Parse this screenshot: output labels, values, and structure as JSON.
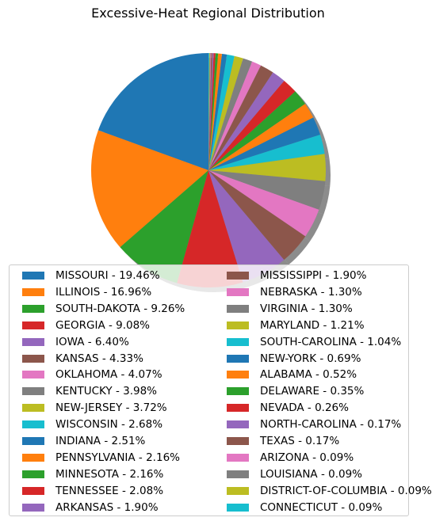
{
  "chart_data": {
    "type": "pie",
    "title": "Excessive-Heat Regional Distribution",
    "shadow": true,
    "start_angle_deg": 90,
    "direction": "counterclockwise",
    "legend": "bottom",
    "slices": [
      {
        "label": "MISSOURI - 19.46%",
        "value": 19.46,
        "color": "#1f77b4"
      },
      {
        "label": "ILLINOIS - 16.96%",
        "value": 16.96,
        "color": "#ff7f0e"
      },
      {
        "label": "SOUTH-DAKOTA - 9.26%",
        "value": 9.26,
        "color": "#2ca02c"
      },
      {
        "label": "GEORGIA - 9.08%",
        "value": 9.08,
        "color": "#d62728"
      },
      {
        "label": "IOWA - 6.40%",
        "value": 6.4,
        "color": "#9467bd"
      },
      {
        "label": "KANSAS - 4.33%",
        "value": 4.33,
        "color": "#8c564b"
      },
      {
        "label": "OKLAHOMA - 4.07%",
        "value": 4.07,
        "color": "#e377c2"
      },
      {
        "label": "KENTUCKY - 3.98%",
        "value": 3.98,
        "color": "#7f7f7f"
      },
      {
        "label": "NEW-JERSEY - 3.72%",
        "value": 3.72,
        "color": "#bcbd22"
      },
      {
        "label": "WISCONSIN - 2.68%",
        "value": 2.68,
        "color": "#17becf"
      },
      {
        "label": "INDIANA - 2.51%",
        "value": 2.51,
        "color": "#1f77b4"
      },
      {
        "label": "PENNSYLVANIA - 2.16%",
        "value": 2.16,
        "color": "#ff7f0e"
      },
      {
        "label": "MINNESOTA - 2.16%",
        "value": 2.16,
        "color": "#2ca02c"
      },
      {
        "label": "TENNESSEE - 2.08%",
        "value": 2.08,
        "color": "#d62728"
      },
      {
        "label": "ARKANSAS - 1.90%",
        "value": 1.9,
        "color": "#9467bd"
      },
      {
        "label": "MISSISSIPPI - 1.90%",
        "value": 1.9,
        "color": "#8c564b"
      },
      {
        "label": "NEBRASKA - 1.30%",
        "value": 1.3,
        "color": "#e377c2"
      },
      {
        "label": "VIRGINIA - 1.30%",
        "value": 1.3,
        "color": "#7f7f7f"
      },
      {
        "label": "MARYLAND - 1.21%",
        "value": 1.21,
        "color": "#bcbd22"
      },
      {
        "label": "SOUTH-CAROLINA - 1.04%",
        "value": 1.04,
        "color": "#17becf"
      },
      {
        "label": "NEW-YORK - 0.69%",
        "value": 0.69,
        "color": "#1f77b4"
      },
      {
        "label": "ALABAMA - 0.52%",
        "value": 0.52,
        "color": "#ff7f0e"
      },
      {
        "label": "DELAWARE - 0.35%",
        "value": 0.35,
        "color": "#2ca02c"
      },
      {
        "label": "NEVADA - 0.26%",
        "value": 0.26,
        "color": "#d62728"
      },
      {
        "label": "NORTH-CAROLINA - 0.17%",
        "value": 0.17,
        "color": "#9467bd"
      },
      {
        "label": "TEXAS - 0.17%",
        "value": 0.17,
        "color": "#8c564b"
      },
      {
        "label": "ARIZONA - 0.09%",
        "value": 0.09,
        "color": "#e377c2"
      },
      {
        "label": "LOUISIANA - 0.09%",
        "value": 0.09,
        "color": "#7f7f7f"
      },
      {
        "label": "DISTRICT-OF-COLUMBIA - 0.09%",
        "value": 0.09,
        "color": "#bcbd22"
      },
      {
        "label": "CONNECTICUT - 0.09%",
        "value": 0.09,
        "color": "#17becf"
      }
    ]
  }
}
